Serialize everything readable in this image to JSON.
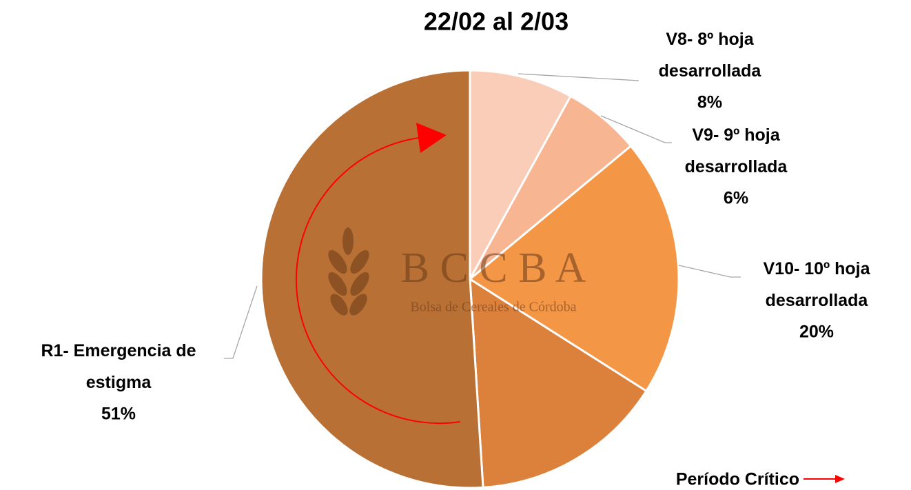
{
  "chart_data": {
    "type": "pie",
    "title": "22/02 al 2/03",
    "categories": [
      "V8- 8º hoja desarrollada",
      "V9- 9º hoja desarrollada",
      "V10- 10º hoja desarrollada",
      null,
      "R1- Emergencia de estigma"
    ],
    "values": [
      8,
      6,
      20,
      15,
      51
    ],
    "value_labels": [
      "8%",
      "6%",
      "20%",
      null,
      "51%"
    ],
    "colors": [
      "#f9cdb7",
      "#f7b592",
      "#f39646",
      "#dc813c",
      "#b87034"
    ],
    "legend": "Período Crítico",
    "legend_color": "#ff0000",
    "watermark": {
      "logo": "B C C B A",
      "name": "Bolsa de Cereales de Córdoba"
    }
  }
}
